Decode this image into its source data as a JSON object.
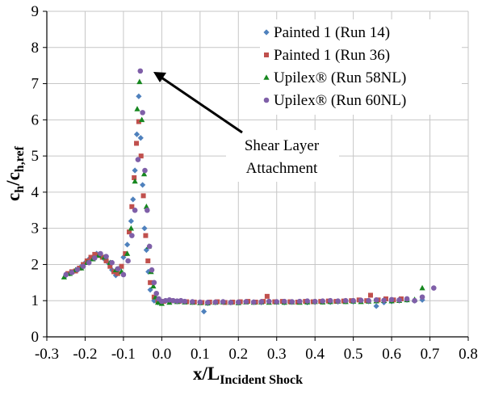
{
  "chart_data": {
    "type": "scatter",
    "xlabel": {
      "main": "x/L",
      "sub": "Incident Shock"
    },
    "ylabel": {
      "main": "c",
      "sub1": "h",
      "slash": "/c",
      "sub2": "h,ref"
    },
    "xlim": [
      -0.3,
      0.8
    ],
    "ylim": [
      0,
      9
    ],
    "x_ticks": [
      "-0.3",
      "-0.2",
      "-0.1",
      "0.0",
      "0.1",
      "0.2",
      "0.3",
      "0.4",
      "0.5",
      "0.6",
      "0.7",
      "0.8"
    ],
    "y_ticks": [
      "0",
      "1",
      "2",
      "3",
      "4",
      "5",
      "6",
      "7",
      "8",
      "9"
    ],
    "grid": true,
    "legend_position": "top-right",
    "annotation": {
      "line1": "Shear Layer",
      "line2": "Attachment",
      "points_to": [
        -0.055,
        7.35
      ]
    },
    "series": [
      {
        "name": "Painted 1 (Run 14)",
        "color": "#4f81bd",
        "marker": "diamond",
        "x": [
          -0.25,
          -0.24,
          -0.23,
          -0.22,
          -0.21,
          -0.2,
          -0.19,
          -0.18,
          -0.17,
          -0.16,
          -0.15,
          -0.14,
          -0.13,
          -0.12,
          -0.11,
          -0.1,
          -0.09,
          -0.08,
          -0.075,
          -0.07,
          -0.065,
          -0.06,
          -0.055,
          -0.05,
          -0.045,
          -0.04,
          -0.035,
          -0.03,
          -0.02,
          -0.01,
          0.0,
          0.02,
          0.04,
          0.06,
          0.08,
          0.1,
          0.11,
          0.12,
          0.14,
          0.16,
          0.18,
          0.2,
          0.22,
          0.24,
          0.26,
          0.28,
          0.3,
          0.32,
          0.34,
          0.36,
          0.38,
          0.4,
          0.42,
          0.44,
          0.46,
          0.48,
          0.5,
          0.52,
          0.54,
          0.56,
          0.58,
          0.6,
          0.62,
          0.64,
          0.66,
          0.68
        ],
        "y": [
          1.7,
          1.75,
          1.8,
          1.85,
          1.95,
          2.05,
          2.15,
          2.2,
          2.3,
          2.25,
          2.15,
          2.05,
          1.85,
          1.7,
          1.9,
          2.2,
          2.55,
          3.2,
          3.8,
          4.6,
          5.6,
          6.65,
          5.5,
          4.2,
          3.0,
          2.4,
          1.8,
          1.3,
          1.0,
          0.95,
          0.95,
          0.97,
          0.98,
          0.97,
          0.96,
          0.95,
          0.7,
          0.93,
          0.95,
          0.96,
          0.95,
          0.95,
          0.97,
          0.96,
          0.95,
          0.97,
          0.96,
          0.95,
          0.96,
          0.97,
          0.95,
          0.96,
          0.97,
          0.96,
          0.97,
          0.98,
          0.97,
          1.0,
          0.98,
          0.85,
          0.95,
          0.98,
          1.0,
          1.02,
          1.0,
          1.02
        ]
      },
      {
        "name": "Painted 1 (Run 36)",
        "color": "#c0504d",
        "marker": "square",
        "x": [
          -0.245,
          -0.235,
          -0.225,
          -0.215,
          -0.205,
          -0.195,
          -0.185,
          -0.175,
          -0.165,
          -0.155,
          -0.145,
          -0.135,
          -0.125,
          -0.115,
          -0.105,
          -0.095,
          -0.085,
          -0.078,
          -0.072,
          -0.066,
          -0.06,
          -0.054,
          -0.048,
          -0.042,
          -0.036,
          -0.03,
          -0.02,
          -0.01,
          0.005,
          0.025,
          0.045,
          0.065,
          0.085,
          0.105,
          0.125,
          0.145,
          0.165,
          0.185,
          0.205,
          0.225,
          0.245,
          0.265,
          0.275,
          0.295,
          0.315,
          0.335,
          0.355,
          0.375,
          0.395,
          0.415,
          0.435,
          0.455,
          0.475,
          0.495,
          0.515,
          0.535,
          0.545,
          0.565,
          0.585,
          0.605,
          0.625
        ],
        "y": [
          1.75,
          1.8,
          1.82,
          1.9,
          2.0,
          2.1,
          2.2,
          2.28,
          2.25,
          2.2,
          2.1,
          1.95,
          1.8,
          1.75,
          1.95,
          2.3,
          2.9,
          3.6,
          4.4,
          5.35,
          5.95,
          5.0,
          3.9,
          2.8,
          2.1,
          1.5,
          1.1,
          1.0,
          0.98,
          1.0,
          0.98,
          0.97,
          0.96,
          0.95,
          0.96,
          0.97,
          0.95,
          0.96,
          0.97,
          0.98,
          0.96,
          0.98,
          1.12,
          0.97,
          0.98,
          0.97,
          0.96,
          0.98,
          0.97,
          0.98,
          0.99,
          0.98,
          0.99,
          1.0,
          1.02,
          1.0,
          1.15,
          1.02,
          1.05,
          1.02,
          1.05
        ]
      },
      {
        "name": "Upilex® (Run 58NL)",
        "color": "#16871f",
        "marker": "triangle",
        "x": [
          -0.255,
          -0.24,
          -0.225,
          -0.21,
          -0.195,
          -0.18,
          -0.165,
          -0.15,
          -0.135,
          -0.12,
          -0.105,
          -0.09,
          -0.08,
          -0.07,
          -0.064,
          -0.058,
          -0.052,
          -0.046,
          -0.04,
          -0.034,
          -0.028,
          -0.022,
          -0.016,
          -0.01,
          0.0,
          0.02,
          0.04,
          0.06,
          0.08,
          0.1,
          0.12,
          0.14,
          0.16,
          0.18,
          0.2,
          0.22,
          0.24,
          0.26,
          0.28,
          0.3,
          0.32,
          0.34,
          0.36,
          0.38,
          0.4,
          0.42,
          0.44,
          0.46,
          0.48,
          0.5,
          0.52,
          0.54,
          0.56,
          0.58,
          0.6,
          0.62,
          0.64,
          0.66,
          0.68
        ],
        "y": [
          1.65,
          1.75,
          1.85,
          1.9,
          2.05,
          2.15,
          2.25,
          2.2,
          2.05,
          1.85,
          1.8,
          2.3,
          3.0,
          4.3,
          6.3,
          7.05,
          6.0,
          4.5,
          3.6,
          2.5,
          1.8,
          1.4,
          1.1,
          0.95,
          0.92,
          0.95,
          0.97,
          0.96,
          0.95,
          0.94,
          0.93,
          0.95,
          0.96,
          0.95,
          0.94,
          0.96,
          0.95,
          0.96,
          0.95,
          0.96,
          0.95,
          0.96,
          0.95,
          0.96,
          0.97,
          0.96,
          0.97,
          0.98,
          0.97,
          0.98,
          0.97,
          0.98,
          0.99,
          1.0,
          0.99,
          1.0,
          1.02,
          1.03,
          1.35
        ]
      },
      {
        "name": "Upilex® (Run 60NL)",
        "color": "#7f5fa8",
        "marker": "circle",
        "x": [
          -0.25,
          -0.235,
          -0.22,
          -0.205,
          -0.19,
          -0.175,
          -0.16,
          -0.145,
          -0.13,
          -0.115,
          -0.1,
          -0.088,
          -0.078,
          -0.07,
          -0.062,
          -0.056,
          -0.05,
          -0.044,
          -0.038,
          -0.032,
          -0.026,
          -0.02,
          -0.014,
          -0.008,
          0.0,
          0.01,
          0.02,
          0.03,
          0.04,
          0.05,
          0.06,
          0.08,
          0.1,
          0.12,
          0.14,
          0.16,
          0.18,
          0.2,
          0.22,
          0.24,
          0.26,
          0.28,
          0.3,
          0.32,
          0.34,
          0.36,
          0.38,
          0.4,
          0.42,
          0.44,
          0.46,
          0.48,
          0.5,
          0.52,
          0.54,
          0.56,
          0.58,
          0.6,
          0.62,
          0.64,
          0.66,
          0.68,
          0.71
        ],
        "y": [
          1.72,
          1.78,
          1.86,
          1.95,
          2.05,
          2.18,
          2.3,
          2.22,
          2.05,
          1.88,
          1.72,
          2.1,
          2.8,
          3.5,
          4.9,
          7.35,
          6.2,
          4.6,
          3.5,
          2.5,
          1.85,
          1.5,
          1.2,
          1.05,
          0.98,
          1.0,
          1.02,
          1.0,
          0.99,
          1.0,
          0.98,
          0.97,
          0.96,
          0.95,
          0.96,
          0.97,
          0.95,
          0.96,
          0.97,
          0.96,
          0.97,
          0.98,
          0.97,
          0.98,
          0.97,
          0.98,
          0.99,
          0.98,
          0.99,
          1.0,
          0.99,
          1.0,
          1.0,
          1.01,
          1.0,
          1.02,
          1.01,
          1.03,
          1.02,
          1.05,
          1.0,
          1.1,
          1.35
        ]
      }
    ]
  }
}
